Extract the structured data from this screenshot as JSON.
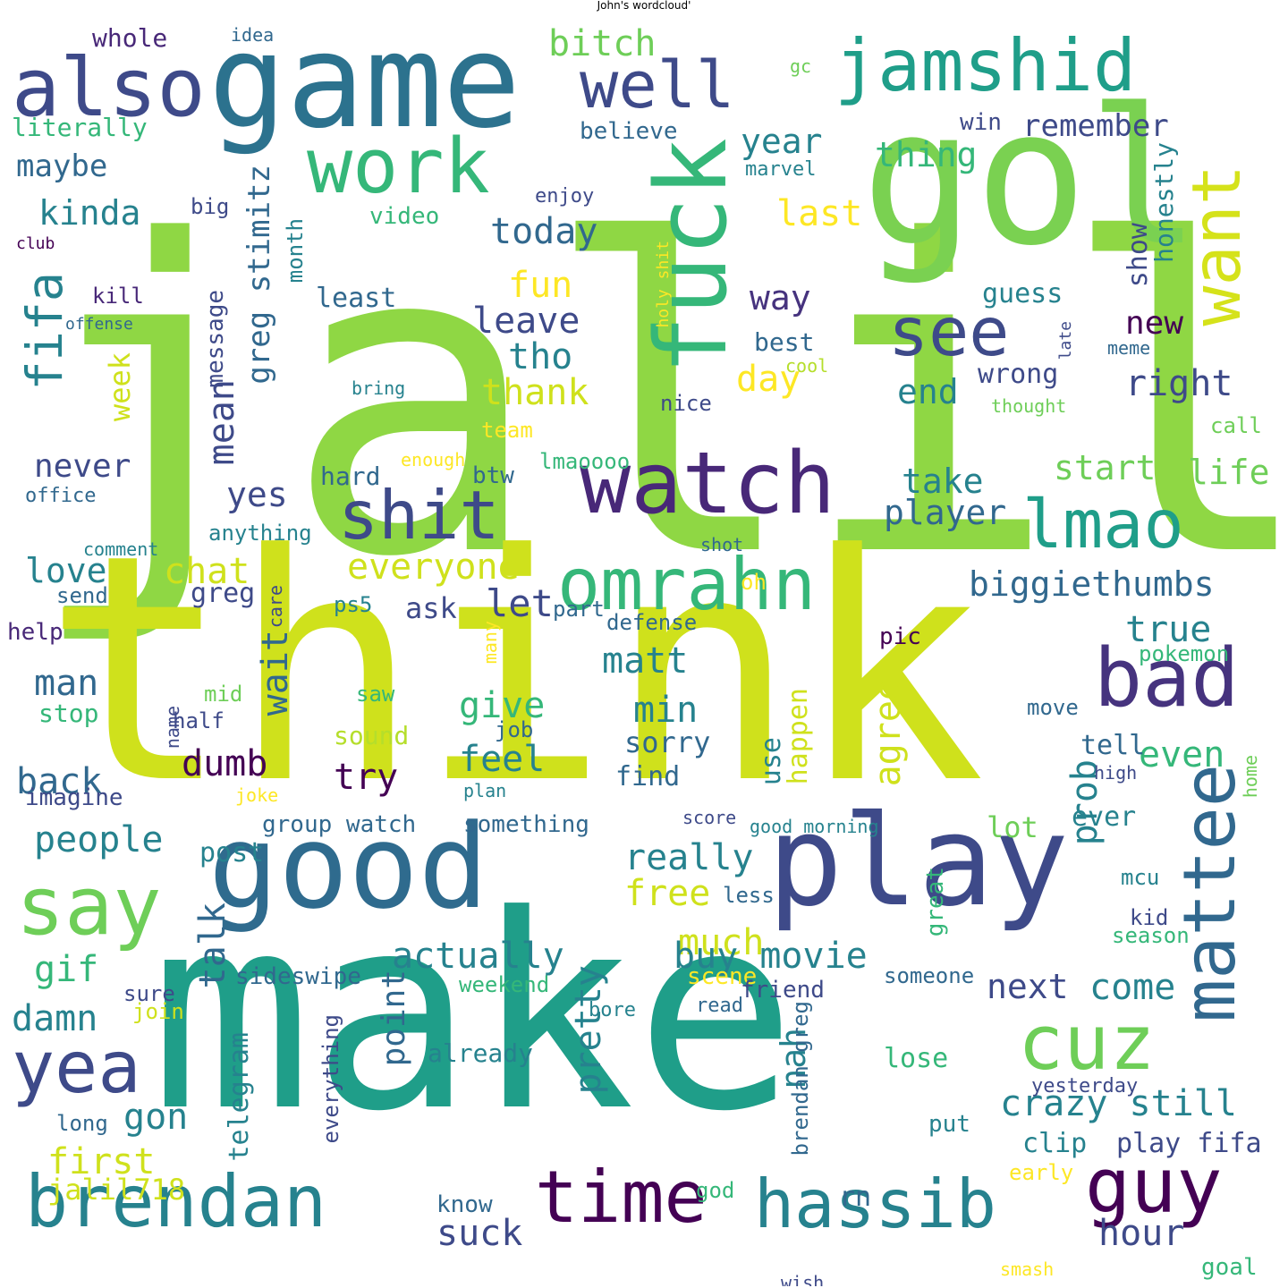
{
  "title": "John's wordcloud'",
  "colors": {
    "v0": "#440154",
    "v1": "#482878",
    "v2": "#3e4a89",
    "v3": "#31688e",
    "v4": "#26828e",
    "v5": "#1f9e89",
    "v6": "#35b779",
    "v7": "#6ece58",
    "v8": "#b5de2b",
    "v9": "#cfe11c",
    "v10": "#8fd744",
    "v11": "#fde725"
  },
  "words": [
    {
      "text": "jalil",
      "c": "#8fd744"
    },
    {
      "text": "think",
      "c": "#cfe11c"
    },
    {
      "text": "make",
      "c": "#1f9e89"
    },
    {
      "text": "game",
      "c": "#2c728e"
    },
    {
      "text": "gol",
      "c": "#7ad151"
    },
    {
      "text": "good",
      "c": "#2f6b8e"
    },
    {
      "text": "play",
      "c": "#3e4a89"
    },
    {
      "text": "fuck",
      "c": "#35b779"
    },
    {
      "text": "watch",
      "c": "#482878"
    },
    {
      "text": "also",
      "c": "#3e4a89"
    },
    {
      "text": "jamshid",
      "c": "#1f9e89"
    },
    {
      "text": "well",
      "c": "#3e4a89"
    },
    {
      "text": "work",
      "c": "#35b779"
    },
    {
      "text": "see",
      "c": "#3e4a89"
    },
    {
      "text": "want",
      "c": "#d5e21a"
    },
    {
      "text": "shit",
      "c": "#3e4a89"
    },
    {
      "text": "lmao",
      "c": "#1f9e89"
    },
    {
      "text": "omrahn",
      "c": "#35b779"
    },
    {
      "text": "bad",
      "c": "#46337e"
    },
    {
      "text": "mattee",
      "c": "#31688e"
    },
    {
      "text": "say",
      "c": "#6ece58"
    },
    {
      "text": "cuz",
      "c": "#6ece58"
    },
    {
      "text": "guy",
      "c": "#440154"
    },
    {
      "text": "yea",
      "c": "#3e4a89"
    },
    {
      "text": "brendan",
      "c": "#26828e"
    },
    {
      "text": "time",
      "c": "#440154"
    },
    {
      "text": "hassib",
      "c": "#26828e"
    },
    {
      "text": "fifa",
      "c": "#26828e"
    },
    {
      "text": "greg stimitz",
      "c": "#31688e"
    },
    {
      "text": "bitch",
      "c": "#6ece58"
    },
    {
      "text": "year",
      "c": "#26828e"
    },
    {
      "text": "remember",
      "c": "#3e4a89"
    },
    {
      "text": "thing",
      "c": "#35b779"
    },
    {
      "text": "last",
      "c": "#fde725"
    },
    {
      "text": "show",
      "c": "#3e4a89"
    },
    {
      "text": "honestly",
      "c": "#26828e"
    },
    {
      "text": "literally",
      "c": "#35b779"
    },
    {
      "text": "believe",
      "c": "#31688e"
    },
    {
      "text": "win",
      "c": "#3e4a89"
    },
    {
      "text": "whole",
      "c": "#482878"
    },
    {
      "text": "idea",
      "c": "#31688e"
    },
    {
      "text": "gc",
      "c": "#6ece58"
    },
    {
      "text": "maybe",
      "c": "#31688e"
    },
    {
      "text": "kinda",
      "c": "#26828e"
    },
    {
      "text": "big",
      "c": "#3e4a89"
    },
    {
      "text": "club",
      "c": "#440154"
    },
    {
      "text": "month",
      "c": "#26828e"
    },
    {
      "text": "video",
      "c": "#35b779"
    },
    {
      "text": "today",
      "c": "#31688e"
    },
    {
      "text": "enjoy",
      "c": "#3e4a89"
    },
    {
      "text": "marvel",
      "c": "#26828e"
    },
    {
      "text": "holy shit",
      "c": "#fde725"
    },
    {
      "text": "fun",
      "c": "#fde725"
    },
    {
      "text": "way",
      "c": "#46337e"
    },
    {
      "text": "guess",
      "c": "#26828e"
    },
    {
      "text": "kill",
      "c": "#482878"
    },
    {
      "text": "offense",
      "c": "#31688e"
    },
    {
      "text": "least",
      "c": "#31688e"
    },
    {
      "text": "leave",
      "c": "#3e4a89"
    },
    {
      "text": "new",
      "c": "#440154"
    },
    {
      "text": "message",
      "c": "#3e4a89"
    },
    {
      "text": "tho",
      "c": "#26828e"
    },
    {
      "text": "best",
      "c": "#31688e"
    },
    {
      "text": "late",
      "c": "#3e4a89"
    },
    {
      "text": "meme",
      "c": "#31688e"
    },
    {
      "text": "week",
      "c": "#cfe11c"
    },
    {
      "text": "thank",
      "c": "#cfe11c"
    },
    {
      "text": "day",
      "c": "#fde725"
    },
    {
      "text": "bring",
      "c": "#26828e"
    },
    {
      "text": "cool",
      "c": "#b5de2b"
    },
    {
      "text": "wrong",
      "c": "#3e4a89"
    },
    {
      "text": "thought",
      "c": "#6ece58"
    },
    {
      "text": "end",
      "c": "#26828e"
    },
    {
      "text": "right",
      "c": "#3e4a89"
    },
    {
      "text": "mean",
      "c": "#3e4a89"
    },
    {
      "text": "nice",
      "c": "#3e4a89"
    },
    {
      "text": "team",
      "c": "#fde725"
    },
    {
      "text": "call",
      "c": "#6ece58"
    },
    {
      "text": "enough",
      "c": "#fde725"
    },
    {
      "text": "lmaoooo",
      "c": "#35b779"
    },
    {
      "text": "never",
      "c": "#3e4a89"
    },
    {
      "text": "office",
      "c": "#31688e"
    },
    {
      "text": "hard",
      "c": "#31688e"
    },
    {
      "text": "btw",
      "c": "#31688e"
    },
    {
      "text": "start",
      "c": "#6ece58"
    },
    {
      "text": "take",
      "c": "#26828e"
    },
    {
      "text": "life",
      "c": "#6ece58"
    },
    {
      "text": "yes",
      "c": "#3e4a89"
    },
    {
      "text": "player",
      "c": "#31688e"
    },
    {
      "text": "anything",
      "c": "#26828e"
    },
    {
      "text": "shot",
      "c": "#31688e"
    },
    {
      "text": "comment",
      "c": "#26828e"
    },
    {
      "text": "love",
      "c": "#26828e"
    },
    {
      "text": "chat",
      "c": "#cfe11c"
    },
    {
      "text": "everyone",
      "c": "#cfe11c"
    },
    {
      "text": "biggiethumbs",
      "c": "#31688e"
    },
    {
      "text": "send",
      "c": "#31688e"
    },
    {
      "text": "greg",
      "c": "#3e4a89"
    },
    {
      "text": "care",
      "c": "#3e4a89"
    },
    {
      "text": "ps5",
      "c": "#26828e"
    },
    {
      "text": "let",
      "c": "#3e4a89"
    },
    {
      "text": "ask",
      "c": "#3e4a89"
    },
    {
      "text": "oh",
      "c": "#fde725"
    },
    {
      "text": "part",
      "c": "#31688e"
    },
    {
      "text": "defense",
      "c": "#31688e"
    },
    {
      "text": "true",
      "c": "#26828e"
    },
    {
      "text": "help",
      "c": "#482878"
    },
    {
      "text": "many",
      "c": "#fde725"
    },
    {
      "text": "pic",
      "c": "#440154"
    },
    {
      "text": "pokemon",
      "c": "#35b779"
    },
    {
      "text": "matt",
      "c": "#26828e"
    },
    {
      "text": "man",
      "c": "#31688e"
    },
    {
      "text": "wait",
      "c": "#31688e"
    },
    {
      "text": "min",
      "c": "#26828e"
    },
    {
      "text": "agree",
      "c": "#cfe11c"
    },
    {
      "text": "saw",
      "c": "#35b779"
    },
    {
      "text": "mid",
      "c": "#6ece58"
    },
    {
      "text": "give",
      "c": "#35b779"
    },
    {
      "text": "happen",
      "c": "#cfe11c"
    },
    {
      "text": "move",
      "c": "#31688e"
    },
    {
      "text": "stop",
      "c": "#35b779"
    },
    {
      "text": "name",
      "c": "#3e4a89"
    },
    {
      "text": "half",
      "c": "#3e4a89"
    },
    {
      "text": "sound",
      "c": "#b5de2b"
    },
    {
      "text": "job",
      "c": "#31688e"
    },
    {
      "text": "sorry",
      "c": "#31688e"
    },
    {
      "text": "use",
      "c": "#26828e"
    },
    {
      "text": "even",
      "c": "#35b779"
    },
    {
      "text": "tell",
      "c": "#31688e"
    },
    {
      "text": "back",
      "c": "#31688e"
    },
    {
      "text": "dumb",
      "c": "#440154"
    },
    {
      "text": "feel",
      "c": "#26828e"
    },
    {
      "text": "try",
      "c": "#440154"
    },
    {
      "text": "find",
      "c": "#31688e"
    },
    {
      "text": "prob",
      "c": "#26828e"
    },
    {
      "text": "high",
      "c": "#3e4a89"
    },
    {
      "text": "home",
      "c": "#6ece58"
    },
    {
      "text": "imagine",
      "c": "#3e4a89"
    },
    {
      "text": "joke",
      "c": "#fde725"
    },
    {
      "text": "plan",
      "c": "#26828e"
    },
    {
      "text": "score",
      "c": "#3e4a89"
    },
    {
      "text": "good morning",
      "c": "#26828e"
    },
    {
      "text": "people",
      "c": "#26828e"
    },
    {
      "text": "group watch",
      "c": "#31688e"
    },
    {
      "text": "something",
      "c": "#31688e"
    },
    {
      "text": "ever",
      "c": "#26828e"
    },
    {
      "text": "post",
      "c": "#26828e"
    },
    {
      "text": "lot",
      "c": "#6ece58"
    },
    {
      "text": "really",
      "c": "#26828e"
    },
    {
      "text": "great",
      "c": "#35b779"
    },
    {
      "text": "mcu",
      "c": "#26828e"
    },
    {
      "text": "free",
      "c": "#cfe11c"
    },
    {
      "text": "less",
      "c": "#31688e"
    },
    {
      "text": "kid",
      "c": "#3e4a89"
    },
    {
      "text": "talk",
      "c": "#31688e"
    },
    {
      "text": "season",
      "c": "#35b779"
    },
    {
      "text": "much",
      "c": "#cfe11c"
    },
    {
      "text": "gif",
      "c": "#35b779"
    },
    {
      "text": "actually",
      "c": "#26828e"
    },
    {
      "text": "buy movie",
      "c": "#26828e"
    },
    {
      "text": "pretty",
      "c": "#26828e"
    },
    {
      "text": "scene",
      "c": "#fde725"
    },
    {
      "text": "sideswipe",
      "c": "#31688e"
    },
    {
      "text": "someone",
      "c": "#31688e"
    },
    {
      "text": "next",
      "c": "#3e4a89"
    },
    {
      "text": "come",
      "c": "#26828e"
    },
    {
      "text": "weekend",
      "c": "#35b779"
    },
    {
      "text": "friend",
      "c": "#3e4a89"
    },
    {
      "text": "damn",
      "c": "#26828e"
    },
    {
      "text": "sure",
      "c": "#3e4a89"
    },
    {
      "text": "point",
      "c": "#31688e"
    },
    {
      "text": "join",
      "c": "#cfe11c"
    },
    {
      "text": "bore",
      "c": "#26828e"
    },
    {
      "text": "read",
      "c": "#31688e"
    },
    {
      "text": "gon",
      "c": "#26828e"
    },
    {
      "text": "nah",
      "c": "#26828e"
    },
    {
      "text": "brendan greg",
      "c": "#31688e"
    },
    {
      "text": "crazy still",
      "c": "#26828e"
    },
    {
      "text": "already",
      "c": "#26828e"
    },
    {
      "text": "lose",
      "c": "#35b779"
    },
    {
      "text": "telegram",
      "c": "#26828e"
    },
    {
      "text": "everything",
      "c": "#3e4a89"
    },
    {
      "text": "yesterday",
      "c": "#3e4a89"
    },
    {
      "text": "long",
      "c": "#31688e"
    },
    {
      "text": "put",
      "c": "#26828e"
    },
    {
      "text": "first",
      "c": "#cfe11c"
    },
    {
      "text": "clip",
      "c": "#26828e"
    },
    {
      "text": "play fifa",
      "c": "#3e4a89"
    },
    {
      "text": "early",
      "c": "#fde725"
    },
    {
      "text": "jalil718",
      "c": "#cfe11c"
    },
    {
      "text": "god",
      "c": "#35b779"
    },
    {
      "text": "rn",
      "c": "#31688e"
    },
    {
      "text": "know",
      "c": "#31688e"
    },
    {
      "text": "suck",
      "c": "#3e4a89"
    },
    {
      "text": "hour",
      "c": "#3e4a89"
    },
    {
      "text": "goal",
      "c": "#35b779"
    },
    {
      "text": "wish",
      "c": "#3e4a89"
    },
    {
      "text": "smash",
      "c": "#fde725"
    }
  ]
}
